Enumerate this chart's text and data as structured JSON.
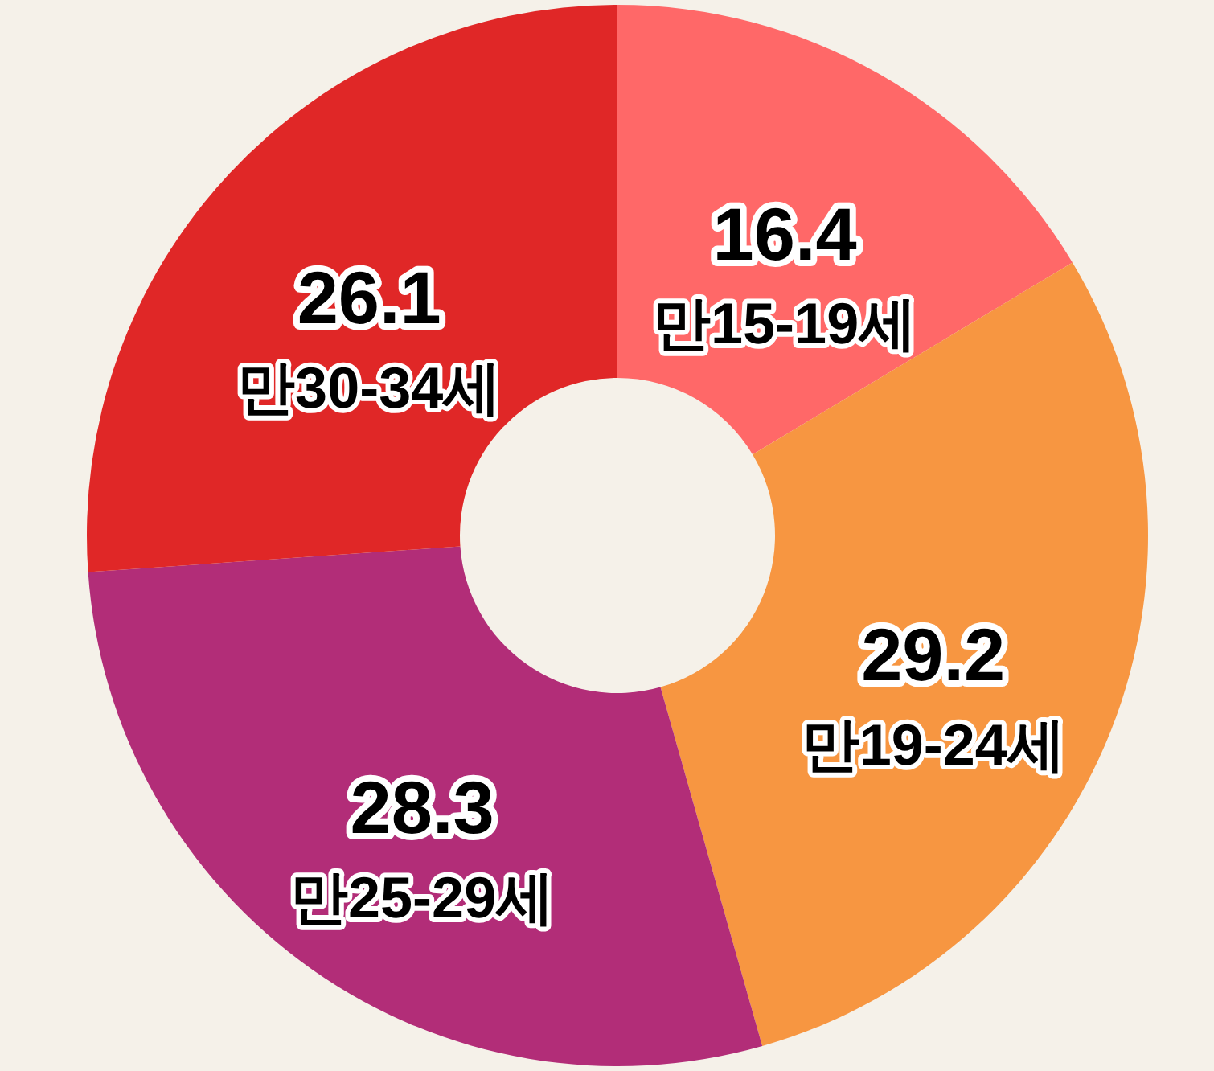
{
  "chart_data": {
    "type": "donut",
    "categories": [
      "만15-19세",
      "만19-24세",
      "만25-29세",
      "만30-34세"
    ],
    "values": [
      16.4,
      29.2,
      28.3,
      26.1
    ],
    "colors": [
      "#ff6868",
      "#f79641",
      "#b22d78",
      "#e02727"
    ],
    "data_labels": true
  }
}
